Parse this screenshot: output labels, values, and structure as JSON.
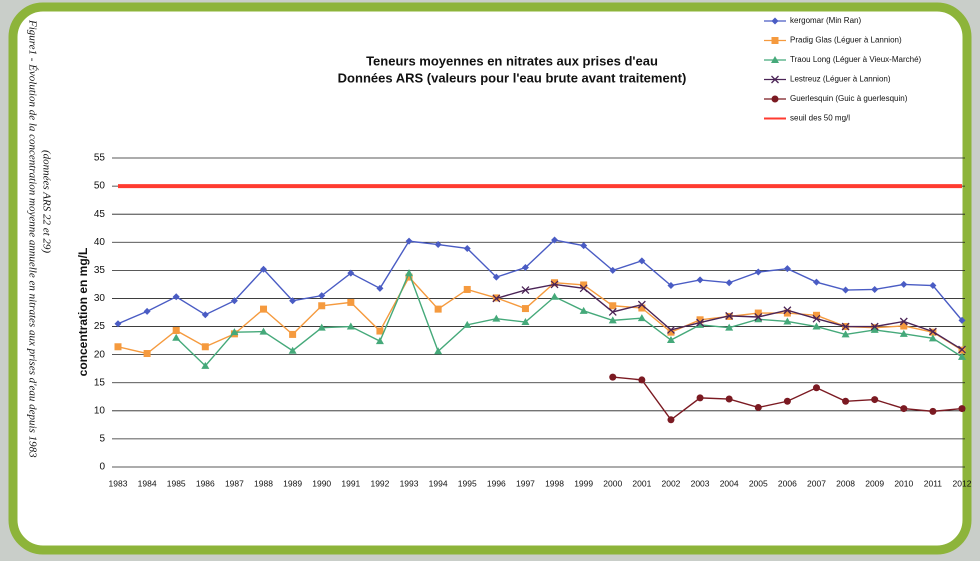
{
  "caption": [
    "Figure1 - Évolution de la concentration moyenne annuelle en nitrates aux prises d'eau depuis 1983",
    "(données ARS 22 et 29)"
  ],
  "chart_data": {
    "type": "line",
    "title": [
      "Teneurs moyennes en nitrates aux prises d'eau",
      "Données ARS (valeurs pour l'eau brute avant traitement)"
    ],
    "y_label": "concentration en mg/L",
    "categories": [
      "1983",
      "1984",
      "1985",
      "1986",
      "1987",
      "1988",
      "1989",
      "1990",
      "1991",
      "1992",
      "1993",
      "1994",
      "1995",
      "1996",
      "1997",
      "1998",
      "1999",
      "2000",
      "2001",
      "2002",
      "2003",
      "2004",
      "2005",
      "2006",
      "2007",
      "2008",
      "2009",
      "2010",
      "2011",
      "2012"
    ],
    "ylim": [
      0,
      55
    ],
    "yticks": [
      0,
      5,
      10,
      15,
      20,
      25,
      30,
      35,
      40,
      45,
      50,
      55
    ],
    "grid": true,
    "legend": "top-right",
    "series": [
      {
        "name": "kergomar (Min Ran)",
        "color": "#4a5cc4",
        "marker": "diamond",
        "values": [
          25.5,
          27.7,
          30.3,
          27.1,
          29.6,
          35.2,
          29.6,
          30.5,
          34.5,
          31.8,
          40.2,
          39.6,
          38.9,
          33.8,
          35.5,
          40.4,
          39.4,
          35.0,
          36.7,
          32.3,
          33.3,
          32.8,
          34.7,
          35.3,
          32.9,
          31.5,
          31.6,
          32.5,
          32.3,
          26.1
        ]
      },
      {
        "name": "Pradig Glas (Léguer à Lannion)",
        "color": "#f59a3e",
        "marker": "square",
        "values": [
          21.4,
          20.2,
          24.3,
          21.4,
          23.7,
          28.1,
          23.6,
          28.7,
          29.3,
          24.2,
          33.8,
          28.1,
          31.6,
          30.1,
          28.2,
          32.8,
          32.4,
          28.7,
          28.3,
          24.0,
          26.2,
          26.8,
          27.4,
          27.4,
          27.0,
          25.0,
          24.8,
          25.1,
          24.0,
          20.8
        ]
      },
      {
        "name": "Traou Long (Léguer à Vieux-Marché)",
        "color": "#45a97a",
        "marker": "triangle",
        "values": [
          null,
          null,
          23.0,
          18.0,
          24.0,
          24.1,
          20.7,
          24.8,
          25.0,
          22.4,
          34.5,
          20.6,
          25.3,
          26.4,
          25.8,
          30.3,
          27.8,
          26.1,
          26.5,
          22.6,
          25.3,
          24.8,
          26.3,
          25.9,
          25.0,
          23.6,
          24.4,
          23.7,
          22.9,
          19.6
        ]
      },
      {
        "name": "Lestreuz (Léguer à Lannion)",
        "color": "#4b2456",
        "marker": "x",
        "values": [
          null,
          null,
          null,
          null,
          null,
          null,
          null,
          null,
          null,
          null,
          null,
          null,
          null,
          30.0,
          31.5,
          32.5,
          31.8,
          27.6,
          28.9,
          24.4,
          25.7,
          26.9,
          26.7,
          27.9,
          26.4,
          25.0,
          25.0,
          25.9,
          24.1,
          20.9
        ]
      },
      {
        "name": "Guerlesquin (Guic à guerlesquin)",
        "color": "#7b1a22",
        "marker": "circle",
        "values": [
          null,
          null,
          null,
          null,
          null,
          null,
          null,
          null,
          null,
          null,
          null,
          null,
          null,
          null,
          null,
          null,
          null,
          16.0,
          15.5,
          8.4,
          12.3,
          12.1,
          10.6,
          11.7,
          14.1,
          11.7,
          12.0,
          10.4,
          9.9,
          10.4
        ]
      },
      {
        "name": "seuil des 50 mg/l",
        "color": "#ff3b30",
        "marker": "none",
        "values": [
          50,
          50,
          50,
          50,
          50,
          50,
          50,
          50,
          50,
          50,
          50,
          50,
          50,
          50,
          50,
          50,
          50,
          50,
          50,
          50,
          50,
          50,
          50,
          50,
          50,
          50,
          50,
          50,
          50,
          50
        ]
      }
    ]
  }
}
